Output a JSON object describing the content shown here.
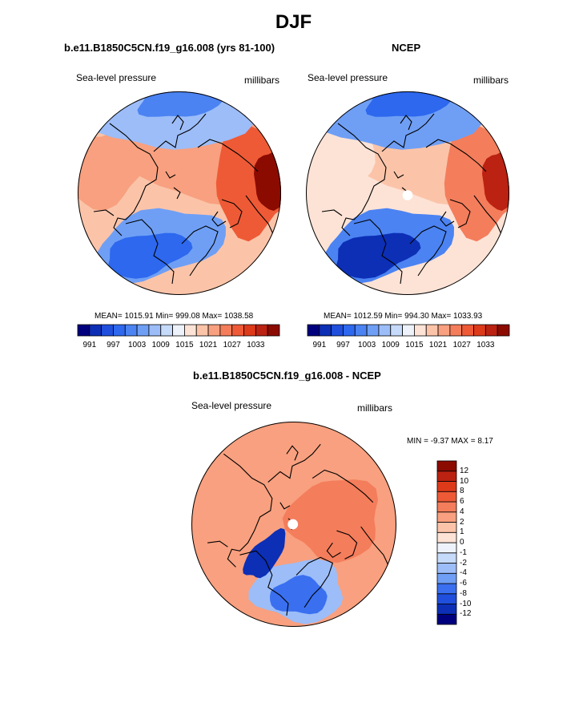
{
  "page": {
    "title": "DJF"
  },
  "panels": [
    {
      "id": "model",
      "title": "b.e11.B1850C5CN.f19_g16.008 (yrs 81-100)",
      "left_label": "Sea-level pressure",
      "right_label": "millibars",
      "stats": "MEAN= 1015.91  Min= 999.08  Max= 1038.58"
    },
    {
      "id": "obs",
      "title": "NCEP",
      "left_label": "Sea-level pressure",
      "right_label": "millibars",
      "stats": "MEAN= 1012.59  Min= 994.30  Max= 1033.93"
    },
    {
      "id": "diff",
      "title": "b.e11.B1850C5CN.f19_g16.008 - NCEP",
      "left_label": "Sea-level pressure",
      "right_label": "millibars",
      "stats": "MIN =  -9.37 MAX =   8.17"
    }
  ],
  "colorbars": {
    "abs": {
      "colors": [
        "#00007f",
        "#0c2fb6",
        "#1f4fdc",
        "#2d68ee",
        "#4b83f2",
        "#6f9ff5",
        "#9cbdf8",
        "#c6daf9",
        "#eef3fb",
        "#fde3d6",
        "#fbc4a9",
        "#f8a07f",
        "#f47d5b",
        "#ee5a36",
        "#dd3a1a",
        "#bb2211",
        "#8c0b00"
      ],
      "tick_labels": [
        "991",
        "997",
        "1003",
        "1009",
        "1015",
        "1021",
        "1027",
        "1033"
      ]
    },
    "diff": {
      "colors": [
        "#00007f",
        "#0c2fb6",
        "#1f4fdc",
        "#3a6ff0",
        "#6f9ff5",
        "#9cbdf8",
        "#c6daf9",
        "#eef3fb",
        "#fde3d6",
        "#fbc4a9",
        "#f8a07f",
        "#f47d5b",
        "#ee5a36",
        "#dd3a1a",
        "#bb2211",
        "#8c0b00"
      ],
      "tick_labels": [
        "12",
        "10",
        "8",
        "6",
        "4",
        "2",
        "1",
        "0",
        "-1",
        "-2",
        "-4",
        "-6",
        "-8",
        "-10",
        "-12"
      ]
    }
  },
  "chart_data": [
    {
      "type": "heatmap",
      "title": "b.e11.B1850C5CN.f19_g16.008 (yrs 81-100)",
      "variable": "Sea-level pressure",
      "units": "millibars",
      "projection": "north-polar-stereographic",
      "mean": 1015.91,
      "min": 999.08,
      "max": 1038.58,
      "contour_levels": [
        991,
        994,
        997,
        1000,
        1003,
        1006,
        1009,
        1012,
        1015,
        1018,
        1021,
        1024,
        1027,
        1030,
        1033,
        1036
      ],
      "regions": [
        {
          "name": "high-east",
          "value": 1038.58,
          "level": 16
        },
        {
          "name": "high-east-ring",
          "value": 1030,
          "level": 13
        },
        {
          "name": "high-upper-right",
          "value": 1024,
          "level": 11
        },
        {
          "name": "ridge-left",
          "value": 1024,
          "level": 11
        },
        {
          "name": "low-bottom",
          "value": 999.08,
          "level": 3
        },
        {
          "name": "low-bottom-ring",
          "value": 1006,
          "level": 5
        },
        {
          "name": "low-top",
          "value": 1003,
          "level": 4
        },
        {
          "name": "low-top-ring",
          "value": 1009,
          "level": 6
        }
      ]
    },
    {
      "type": "heatmap",
      "title": "NCEP",
      "variable": "Sea-level pressure",
      "units": "millibars",
      "projection": "north-polar-stereographic",
      "mean": 1012.59,
      "min": 994.3,
      "max": 1033.93,
      "contour_levels": [
        991,
        994,
        997,
        1000,
        1003,
        1006,
        1009,
        1012,
        1015,
        1018,
        1021,
        1024,
        1027,
        1030,
        1033,
        1036
      ],
      "regions": [
        {
          "name": "high-east",
          "value": 1033.93,
          "level": 15
        },
        {
          "name": "high-east-ring",
          "value": 1027,
          "level": 12
        },
        {
          "name": "high-upper-right",
          "value": 1021,
          "level": 10
        },
        {
          "name": "ridge-left",
          "value": 1018,
          "level": 9
        },
        {
          "name": "low-bottom",
          "value": 994.3,
          "level": 1
        },
        {
          "name": "low-bottom-ring",
          "value": 1003,
          "level": 4
        },
        {
          "name": "low-top",
          "value": 1000,
          "level": 3
        },
        {
          "name": "low-top-ring",
          "value": 1006,
          "level": 5
        }
      ]
    },
    {
      "type": "heatmap",
      "title": "b.e11.B1850C5CN.f19_g16.008 - NCEP",
      "variable": "Sea-level pressure",
      "units": "millibars",
      "projection": "north-polar-stereographic",
      "min": -9.37,
      "max": 8.17,
      "contour_levels": [
        -12,
        -10,
        -8,
        -6,
        -4,
        -2,
        -1,
        0,
        1,
        2,
        4,
        6,
        8,
        10,
        12
      ],
      "regions": [
        {
          "name": "positive-east",
          "value": 6,
          "level": 11
        },
        {
          "name": "positive-west",
          "value": 4,
          "level": 10
        },
        {
          "name": "negative-labrador",
          "value": -9.37,
          "level": 1
        },
        {
          "name": "negative-atlantic",
          "value": -6,
          "level": 3
        },
        {
          "name": "negative-atlantic-ring",
          "value": -2,
          "level": 5
        }
      ]
    }
  ]
}
